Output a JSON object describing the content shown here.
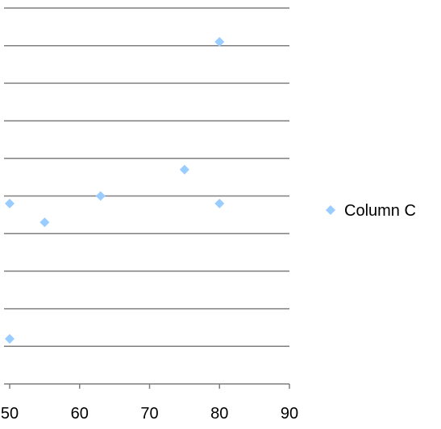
{
  "chart_data": {
    "type": "scatter",
    "title": "",
    "xlabel": "",
    "ylabel": "",
    "xlim": [
      50,
      90
    ],
    "x_ticks": [
      50,
      60,
      70,
      80,
      90
    ],
    "x_tick_labels": [
      "50",
      "60",
      "70",
      "80",
      "90"
    ],
    "y_grid_count": 10,
    "grid": true,
    "legend_position": "right",
    "series": [
      {
        "name": "Column C",
        "color": "#99ccff",
        "marker": "diamond",
        "points": [
          {
            "x": 50,
            "y": 4.8
          },
          {
            "x": 50,
            "y": 1.2
          },
          {
            "x": 55,
            "y": 4.3
          },
          {
            "x": 63,
            "y": 5.0
          },
          {
            "x": 75,
            "y": 5.7
          },
          {
            "x": 80,
            "y": 4.8
          },
          {
            "x": 80,
            "y": 9.1
          }
        ]
      }
    ]
  }
}
